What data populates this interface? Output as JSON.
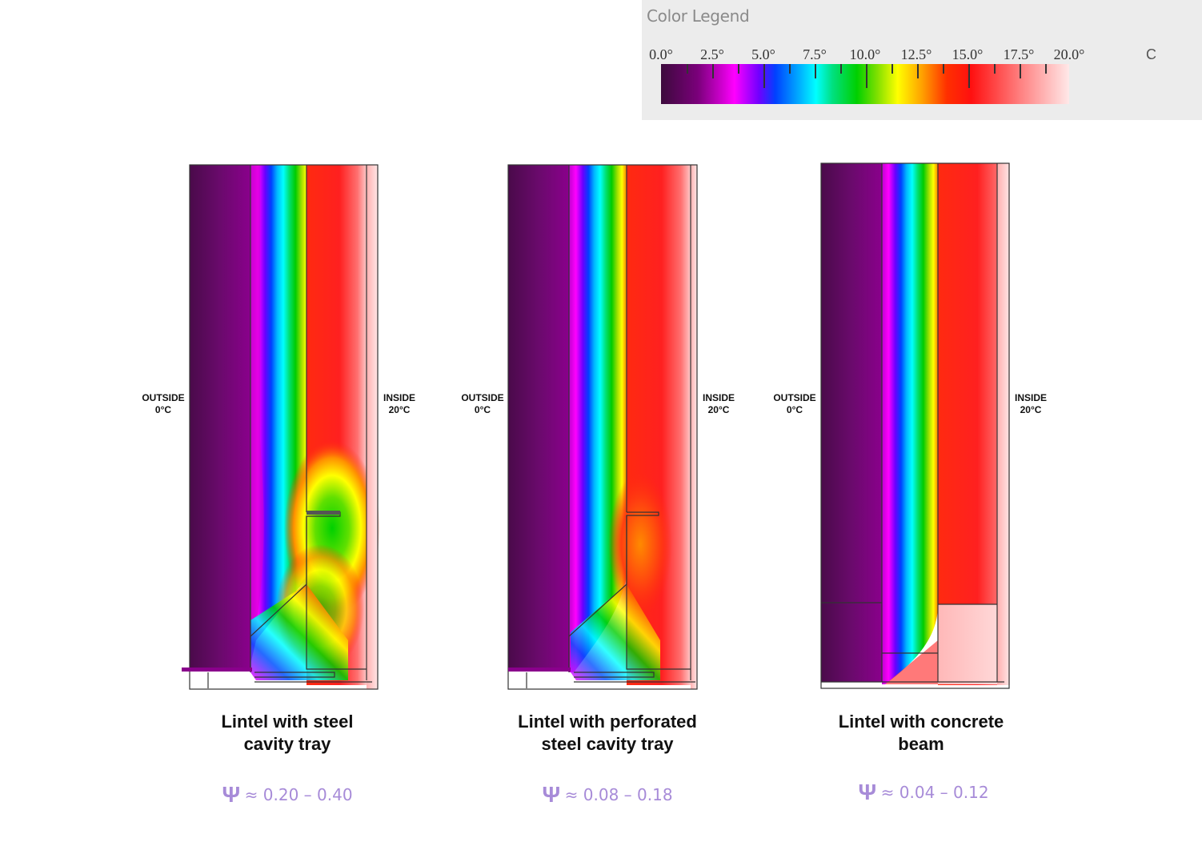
{
  "legend": {
    "title": "Color Legend",
    "tick_labels": [
      "0.0°",
      "2.5°",
      "5.0°",
      "7.5°",
      "10.0°",
      "12.5°",
      "15.0°",
      "17.5°",
      "20.0°"
    ],
    "unit": "C"
  },
  "panels": [
    {
      "outside_label": "OUTSIDE",
      "outside_temp": "0°C",
      "inside_label": "INSIDE",
      "inside_temp": "20°C",
      "caption_line1": "Lintel with steel",
      "caption_line2": "cavity tray",
      "psi_symbol": "Ψ",
      "psi_value": "≈ 0.20 – 0.40"
    },
    {
      "outside_label": "OUTSIDE",
      "outside_temp": "0°C",
      "inside_label": "INSIDE",
      "inside_temp": "20°C",
      "caption_line1": "Lintel with perforated",
      "caption_line2": "steel cavity tray",
      "psi_symbol": "Ψ",
      "psi_value": "≈ 0.08 – 0.18"
    },
    {
      "outside_label": "OUTSIDE",
      "outside_temp": "0°C",
      "inside_label": "INSIDE",
      "inside_temp": "20°C",
      "caption_line1": "Lintel with concrete",
      "caption_line2": "beam",
      "psi_symbol": "Ψ",
      "psi_value": "≈ 0.04 – 0.12"
    }
  ]
}
